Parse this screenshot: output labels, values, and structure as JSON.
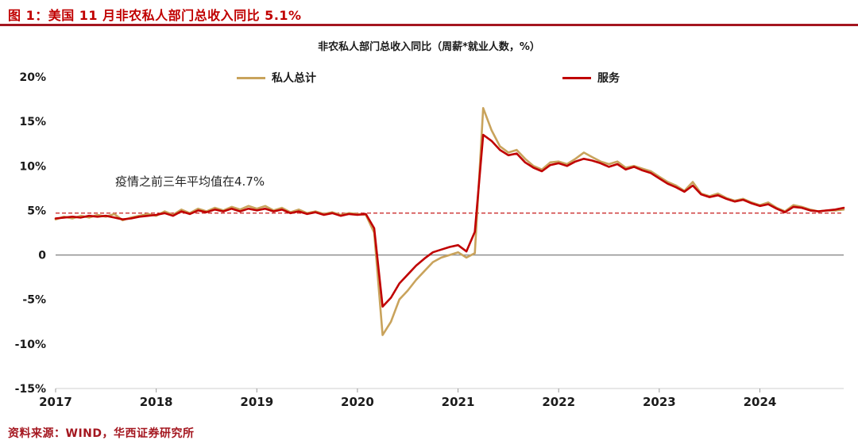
{
  "page": {
    "figure_title": "图 1：美国 11 月非农私人部门总收入同比 5.1%",
    "source": "资料来源：WIND，华西证券研究所"
  },
  "colors": {
    "accent_red": "#c00000",
    "divider_red": "#a4161f",
    "series_total": "#c9a35c",
    "series_services": "#c00000",
    "zero_line": "#8f8f8f",
    "axis_line": "#cfcfcf",
    "tick_color": "#9a9a9a",
    "label_color": "#1a1a1a",
    "annotation_color": "#262626"
  },
  "chart_data": {
    "type": "line",
    "title": "非农私人部门总收入同比（周薪*就业人数，%）",
    "start": "2017-01",
    "frequency": "monthly",
    "ylim": [
      -15,
      20
    ],
    "y_ticks": [
      20,
      15,
      10,
      5,
      0,
      -5,
      -10,
      -15
    ],
    "y_tick_labels": [
      "20%",
      "15%",
      "10%",
      "5%",
      "0",
      "-5%",
      "-10%",
      "-15%"
    ],
    "x_tick_labels": [
      "2017",
      "2018",
      "2019",
      "2020",
      "2021",
      "2022",
      "2023",
      "2024"
    ],
    "x_tick_indices": [
      0,
      12,
      24,
      36,
      48,
      60,
      72,
      84
    ],
    "grid": false,
    "legend_position": "top",
    "reference_line": {
      "value": 4.7,
      "label": "疫情之前三年平均值在4.7%"
    },
    "legend": [
      "私人总计",
      "服务"
    ],
    "series": [
      {
        "name": "私人总计",
        "color": "#c9a35c",
        "values": [
          4.0,
          4.3,
          4.1,
          4.4,
          4.2,
          4.5,
          4.3,
          4.6,
          3.9,
          4.2,
          4.4,
          4.6,
          4.4,
          4.9,
          4.5,
          5.1,
          4.7,
          5.2,
          4.9,
          5.3,
          5.0,
          5.4,
          5.1,
          5.5,
          5.2,
          5.5,
          5.0,
          5.3,
          4.8,
          5.1,
          4.7,
          4.9,
          4.6,
          4.8,
          4.5,
          4.7,
          4.6,
          4.5,
          2.5,
          -9.0,
          -7.5,
          -5.0,
          -4.0,
          -2.8,
          -1.8,
          -0.8,
          -0.3,
          0.0,
          0.3,
          -0.3,
          0.2,
          16.5,
          14.0,
          12.2,
          11.5,
          11.8,
          10.8,
          10.0,
          9.6,
          10.4,
          10.5,
          10.2,
          10.8,
          11.5,
          11.0,
          10.5,
          10.2,
          10.5,
          9.8,
          10.0,
          9.7,
          9.4,
          8.8,
          8.2,
          7.8,
          7.2,
          8.2,
          6.9,
          6.6,
          6.9,
          6.4,
          6.1,
          6.3,
          5.9,
          5.6,
          5.9,
          5.3,
          4.9,
          5.6,
          5.4,
          5.1,
          4.9,
          5.0,
          5.0,
          5.1
        ]
      },
      {
        "name": "服务",
        "color": "#c00000",
        "values": [
          4.1,
          4.2,
          4.3,
          4.2,
          4.4,
          4.3,
          4.4,
          4.2,
          4.0,
          4.1,
          4.3,
          4.4,
          4.5,
          4.7,
          4.4,
          4.9,
          4.6,
          5.0,
          4.8,
          5.1,
          4.9,
          5.2,
          4.9,
          5.2,
          5.0,
          5.2,
          4.9,
          5.1,
          4.7,
          4.9,
          4.6,
          4.8,
          4.5,
          4.7,
          4.4,
          4.6,
          4.5,
          4.6,
          3.0,
          -5.8,
          -4.8,
          -3.2,
          -2.2,
          -1.2,
          -0.4,
          0.3,
          0.6,
          0.9,
          1.1,
          0.4,
          2.6,
          13.5,
          12.8,
          11.8,
          11.2,
          11.4,
          10.4,
          9.8,
          9.4,
          10.1,
          10.3,
          10.0,
          10.5,
          10.8,
          10.6,
          10.3,
          9.9,
          10.2,
          9.6,
          9.9,
          9.5,
          9.2,
          8.6,
          8.0,
          7.6,
          7.1,
          7.8,
          6.8,
          6.5,
          6.7,
          6.3,
          6.0,
          6.2,
          5.8,
          5.5,
          5.7,
          5.2,
          4.8,
          5.4,
          5.3,
          5.0,
          4.9,
          5.0,
          5.1,
          5.3
        ]
      }
    ]
  }
}
